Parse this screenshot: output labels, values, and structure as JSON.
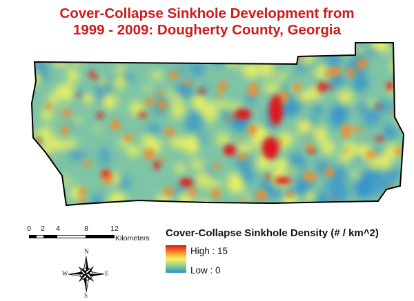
{
  "title": {
    "line1": "Cover-Collapse Sinkhole Development from",
    "line2": "1999 - 2009: Dougherty County, Georgia"
  },
  "scale_bar": {
    "ticks": [
      "0",
      "2",
      "4",
      "8",
      "12"
    ],
    "unit": "Kilometers"
  },
  "legend": {
    "title": "Cover-Collapse Sinkhole Density (# / km^2)",
    "high_label": "High : 15",
    "low_label": "Low : 0",
    "high_color": "#e0191b",
    "mid_color": "#f6f45a",
    "low_color": "#2f8fd2"
  },
  "compass": {
    "n": "N",
    "s": "S",
    "e": "E",
    "w": "W"
  },
  "map": {
    "base_color": "#8fc9a0",
    "outline_color": "#000000"
  }
}
